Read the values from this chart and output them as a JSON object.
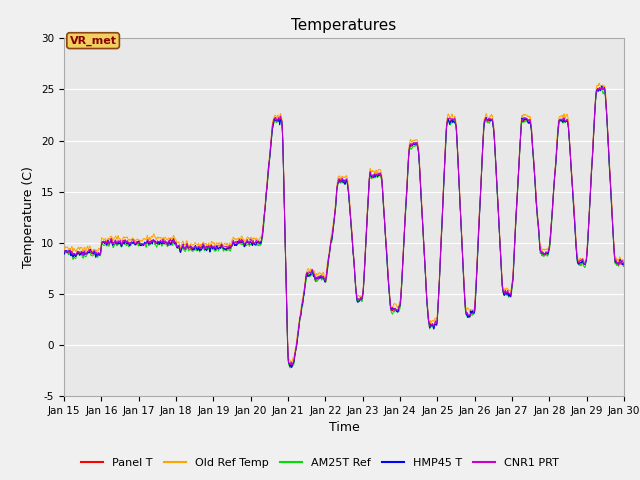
{
  "title": "Temperatures",
  "xlabel": "Time",
  "ylabel": "Temperature (C)",
  "annotation": "VR_met",
  "fig_bg_color": "#f0f0f0",
  "plot_bg_color": "#e8e8e8",
  "grid_color": "#ffffff",
  "xlim": [
    15,
    30
  ],
  "ylim": [
    -5,
    30
  ],
  "yticks": [
    -5,
    0,
    5,
    10,
    15,
    20,
    25,
    30
  ],
  "xtick_positions": [
    15,
    16,
    17,
    18,
    19,
    20,
    21,
    22,
    23,
    24,
    25,
    26,
    27,
    28,
    29,
    30
  ],
  "xtick_labels": [
    "Jan 15",
    "Jan 16",
    "Jan 17",
    "Jan 18",
    "Jan 19",
    "Jan 20",
    "Jan 21",
    "Jan 22",
    "Jan 23",
    "Jan 24",
    "Jan 25",
    "Jan 26",
    "Jan 27",
    "Jan 28",
    "Jan 29",
    "Jan 30"
  ],
  "series_colors": {
    "Panel T": "#ff0000",
    "Old Ref Temp": "#ffa500",
    "AM25T Ref": "#00dd00",
    "HMP45 T": "#0000ff",
    "CNR1 PRT": "#cc00cc"
  },
  "title_fontsize": 11,
  "label_fontsize": 9,
  "tick_fontsize": 7.5,
  "legend_fontsize": 8,
  "annotation_fontsize": 8,
  "line_width": 0.7
}
